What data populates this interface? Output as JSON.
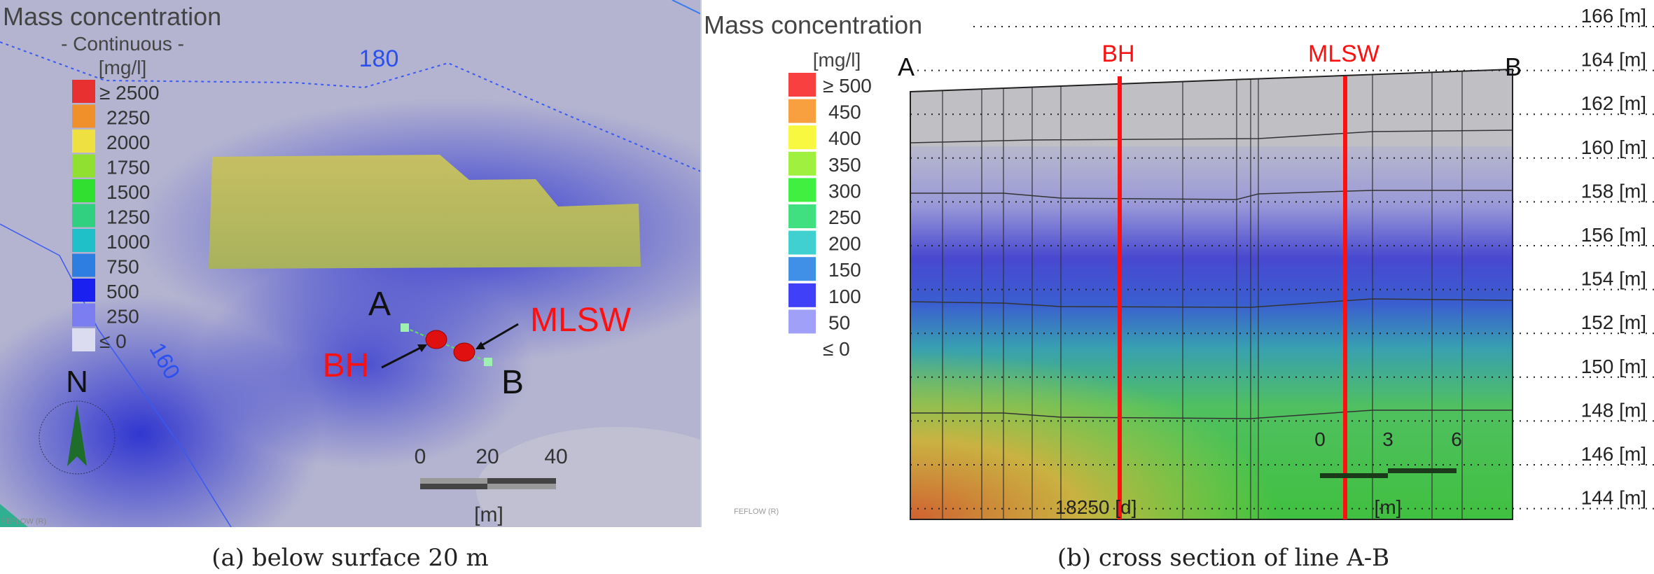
{
  "panel_a": {
    "title": "Mass concentration",
    "subtitle": "- Continuous -",
    "unit": "[mg/l]",
    "legend": [
      {
        "label": "≥ 2500",
        "color": "#e83030"
      },
      {
        "label": "2250",
        "color": "#f0902a"
      },
      {
        "label": "2000",
        "color": "#eee040"
      },
      {
        "label": "1750",
        "color": "#8fe030"
      },
      {
        "label": "1500",
        "color": "#30e030"
      },
      {
        "label": "1250",
        "color": "#30d080"
      },
      {
        "label": "1000",
        "color": "#20c0c8"
      },
      {
        "label": "750",
        "color": "#2e7de0"
      },
      {
        "label": "500",
        "color": "#1a20f0"
      },
      {
        "label": "250",
        "color": "#7a7ef0"
      },
      {
        "label": "≤ 0",
        "color": "#dcdcf0"
      }
    ],
    "contour_labels": [
      "180",
      "160"
    ],
    "point_a": "A",
    "point_b": "B",
    "bh": "BH",
    "mlsw": "MLSW",
    "north": "N",
    "scale_ticks": [
      "0",
      "20",
      "40"
    ],
    "scale_unit": "[m]",
    "watermark": "FEFLOW (R)",
    "caption": "(a) below surface 20 m"
  },
  "panel_b": {
    "title": "Mass concentration",
    "unit": "[mg/l]",
    "legend": [
      {
        "label": "≥ 500",
        "color": "#f84040"
      },
      {
        "label": "450",
        "color": "#f8a040"
      },
      {
        "label": "400",
        "color": "#f8f840"
      },
      {
        "label": "350",
        "color": "#a0f040"
      },
      {
        "label": "300",
        "color": "#40f040"
      },
      {
        "label": "250",
        "color": "#40e080"
      },
      {
        "label": "200",
        "color": "#40d0d0"
      },
      {
        "label": "150",
        "color": "#4090e8"
      },
      {
        "label": "100",
        "color": "#4040f8"
      },
      {
        "label": "50",
        "color": "#a0a0f8"
      },
      {
        "label": "≤ 0",
        "color": null
      }
    ],
    "point_a": "A",
    "point_b": "B",
    "bh": "BH",
    "mlsw": "MLSW",
    "elevations": [
      "166 [m]",
      "164 [m]",
      "162 [m]",
      "160 [m]",
      "158 [m]",
      "156 [m]",
      "154 [m]",
      "152 [m]",
      "150 [m]",
      "148 [m]",
      "146 [m]",
      "144 [m]"
    ],
    "scale_ticks": [
      "0",
      "3",
      "6"
    ],
    "scale_unit": "[m]",
    "time": "18250 [d]",
    "watermark": "FEFLOW (R)",
    "caption": "(b) cross section of line A-B"
  }
}
